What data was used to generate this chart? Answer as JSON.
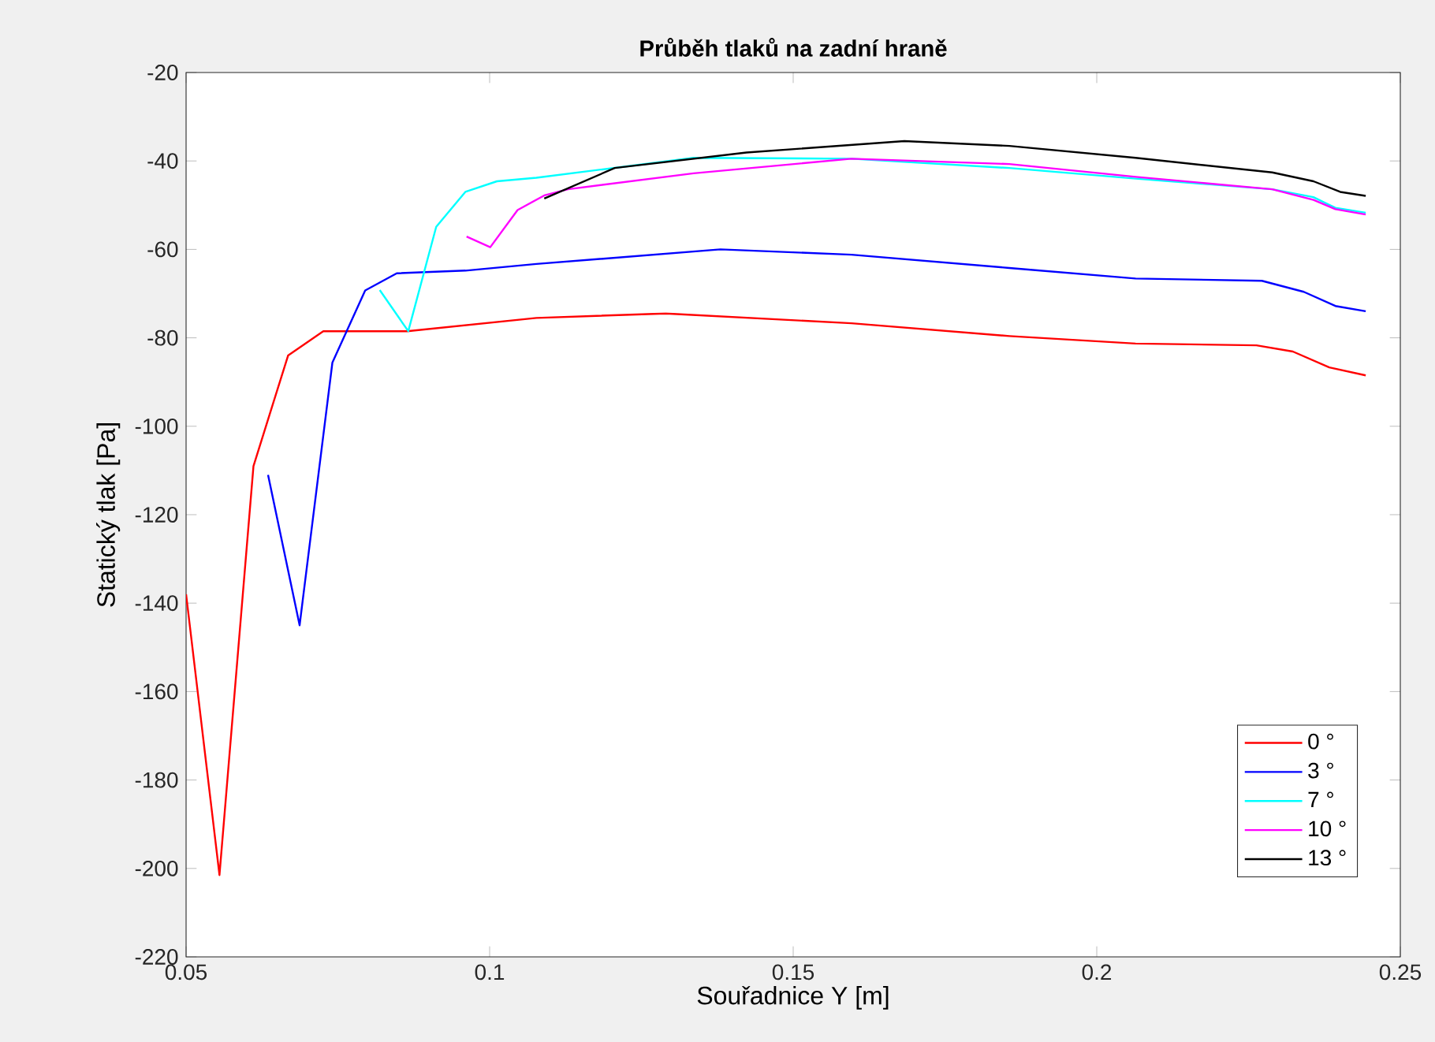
{
  "chart_data": {
    "type": "line",
    "title": "Průběh tlaků na zadní hraně",
    "xlabel": "Souřadnice Y [m]",
    "ylabel": "Statický tlak [Pa]",
    "xlim": [
      0.05,
      0.25
    ],
    "xticks": [
      0.05,
      0.1,
      0.15,
      0.2,
      0.25
    ],
    "ylim": [
      -220,
      -20
    ],
    "yticks": [
      -220,
      -200,
      -180,
      -160,
      -140,
      -120,
      -100,
      -80,
      -60,
      -40,
      -20
    ],
    "legend": "bottom right",
    "series": [
      {
        "name": "0 °",
        "color": "#ff0000",
        "x": [
          0.05,
          0.0555,
          0.0611,
          0.0668,
          0.0726,
          0.0864,
          0.1077,
          0.129,
          0.1596,
          0.1856,
          0.2064,
          0.2263,
          0.2323,
          0.2383,
          0.2443
        ],
        "values": [
          -138,
          -201.5,
          -109,
          -84,
          -78.5,
          -78.5,
          -75.5,
          -74.5,
          -76.7,
          -79.6,
          -81.3,
          -81.7,
          -83.1,
          -86.7,
          -88.5
        ]
      },
      {
        "name": "3 °",
        "color": "#0000ff",
        "x": [
          0.0635,
          0.0687,
          0.0741,
          0.0795,
          0.0847,
          0.096,
          0.1077,
          0.138,
          0.1596,
          0.1856,
          0.2064,
          0.2272,
          0.2341,
          0.2393,
          0.2443
        ],
        "values": [
          -111,
          -145,
          -85.6,
          -69.3,
          -65.4,
          -64.8,
          -63.3,
          -60,
          -61.2,
          -64.2,
          -66.6,
          -67.1,
          -69.6,
          -72.8,
          -74
        ]
      },
      {
        "name": "7 °",
        "color": "#00ffff",
        "x": [
          0.0819,
          0.0866,
          0.0912,
          0.096,
          0.1012,
          0.1077,
          0.1336,
          0.1596,
          0.1856,
          0.2064,
          0.2289,
          0.2357,
          0.2393,
          0.2443
        ],
        "values": [
          -69.2,
          -78.5,
          -54.9,
          -47,
          -44.6,
          -43.8,
          -39.3,
          -39.5,
          -41.6,
          -44,
          -46.4,
          -48.2,
          -50.6,
          -51.7
        ]
      },
      {
        "name": "10 °",
        "color": "#ff00ff",
        "x": [
          0.0962,
          0.1001,
          0.1046,
          0.109,
          0.1129,
          0.1336,
          0.1596,
          0.1856,
          0.2064,
          0.2289,
          0.2357,
          0.2393,
          0.2443
        ],
        "values": [
          -57.1,
          -59.5,
          -51.1,
          -47.8,
          -46.4,
          -42.8,
          -39.5,
          -40.7,
          -43.6,
          -46.4,
          -48.8,
          -50.9,
          -52.1
        ]
      },
      {
        "name": "13 °",
        "color": "#000000",
        "x": [
          0.109,
          0.1206,
          0.1423,
          0.1683,
          0.1856,
          0.2064,
          0.2289,
          0.2357,
          0.2401,
          0.2443
        ],
        "values": [
          -48.5,
          -41.6,
          -38.1,
          -35.5,
          -36.6,
          -39.3,
          -42.6,
          -44.6,
          -47,
          -47.9
        ]
      }
    ]
  }
}
